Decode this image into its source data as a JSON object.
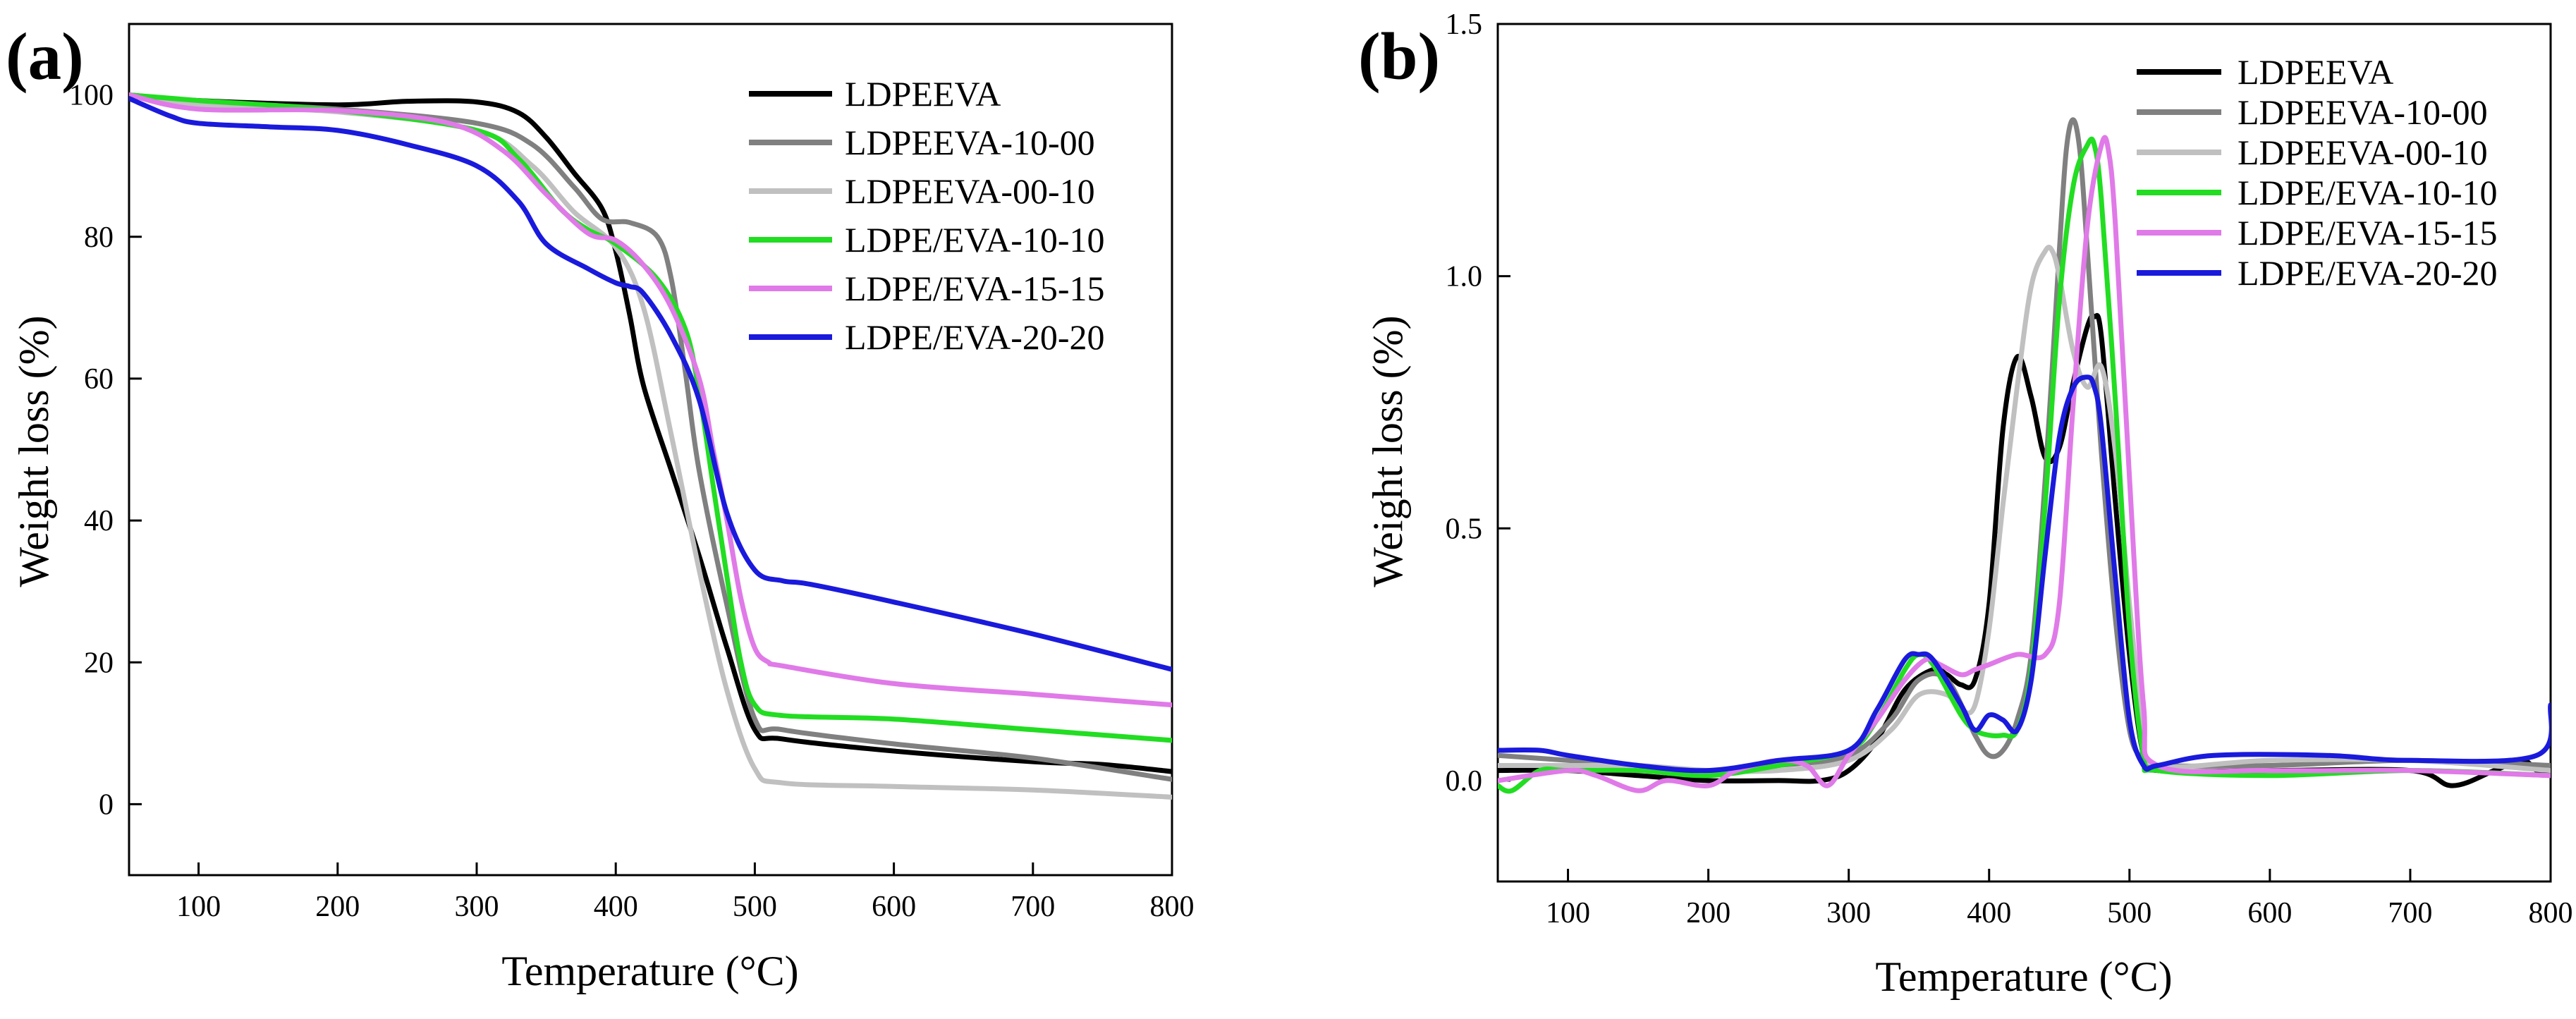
{
  "chart_data": [
    {
      "type": "line",
      "panel_label": "(a)",
      "xlabel": "Temperature (°C)",
      "ylabel": "Weight loss (%)",
      "xlim": [
        50,
        800
      ],
      "ylim": [
        -10,
        110
      ],
      "xticks": [
        100,
        200,
        300,
        400,
        500,
        600,
        700,
        800
      ],
      "yticks": [
        0,
        20,
        40,
        60,
        80,
        100
      ],
      "xtick_labels": [
        "100",
        "200",
        "300",
        "400",
        "500",
        "600",
        "700",
        "800"
      ],
      "ytick_labels": [
        "0",
        "20",
        "40",
        "60",
        "80",
        "100"
      ],
      "grid": false,
      "legend_position": "top-right",
      "series": [
        {
          "name": "LDPEEVA",
          "color": "#000000",
          "x": [
            50,
            100,
            200,
            250,
            300,
            330,
            350,
            370,
            390,
            400,
            410,
            420,
            440,
            460,
            480,
            500,
            520,
            600,
            700,
            750,
            800
          ],
          "y": [
            100,
            99.2,
            98.6,
            99.1,
            99,
            97.5,
            94,
            89,
            84,
            78,
            69,
            59,
            47,
            35,
            22,
            10.5,
            9.2,
            7.5,
            6,
            5.6,
            4.6
          ]
        },
        {
          "name": "LDPEEVA-10-00",
          "color": "#808080",
          "x": [
            50,
            100,
            200,
            300,
            340,
            370,
            390,
            410,
            430,
            440,
            450,
            460,
            480,
            500,
            520,
            600,
            700,
            800
          ],
          "y": [
            100,
            99,
            98,
            96,
            93,
            87,
            82.5,
            82,
            80,
            74,
            61,
            47,
            28,
            12,
            10.5,
            8.5,
            6.5,
            3.5
          ]
        },
        {
          "name": "LDPEEVA-00-10",
          "color": "#c0c0c0",
          "x": [
            50,
            100,
            200,
            300,
            340,
            370,
            400,
            420,
            440,
            460,
            480,
            500,
            520,
            600,
            700,
            800
          ],
          "y": [
            100,
            98.6,
            97.6,
            95,
            90,
            83.5,
            78.5,
            70,
            52,
            33,
            16,
            5,
            3,
            2.5,
            2,
            1
          ]
        },
        {
          "name": "LDPE/EVA-10-10",
          "color": "#22dd22",
          "x": [
            50,
            100,
            200,
            300,
            330,
            360,
            380,
            400,
            430,
            450,
            460,
            470,
            480,
            490,
            500,
            520,
            600,
            700,
            800
          ],
          "y": [
            100,
            99.2,
            97.8,
            95,
            91,
            84,
            81,
            79,
            74,
            67,
            58,
            45,
            32,
            20,
            14,
            12.5,
            12,
            10.5,
            9
          ]
        },
        {
          "name": "LDPE/EVA-15-15",
          "color": "#e07ae8",
          "x": [
            50,
            100,
            200,
            280,
            320,
            350,
            380,
            400,
            420,
            440,
            460,
            470,
            480,
            490,
            500,
            510,
            520,
            600,
            700,
            800
          ],
          "y": [
            100,
            98,
            97.8,
            96,
            92,
            86,
            80.5,
            79.5,
            76,
            70,
            60,
            50,
            40,
            29,
            22,
            20,
            19.5,
            17,
            15.5,
            14
          ]
        },
        {
          "name": "LDPE/EVA-20-20",
          "color": "#1a1adc",
          "x": [
            50,
            80,
            100,
            150,
            200,
            250,
            300,
            330,
            350,
            380,
            400,
            410,
            420,
            440,
            460,
            480,
            500,
            520,
            540,
            600,
            700,
            800
          ],
          "y": [
            99.5,
            97,
            96,
            95.5,
            95,
            93,
            90,
            85,
            79,
            75.5,
            73.5,
            73,
            72,
            66,
            57,
            41,
            33,
            31.5,
            31,
            28.5,
            24,
            19
          ]
        }
      ],
      "legend": [
        "LDPEEVA",
        "LDPEEVA-10-00",
        "LDPEEVA-00-10",
        "LDPE/EVA-10-10",
        "LDPE/EVA-15-15",
        "LDPE/EVA-20-20"
      ]
    },
    {
      "type": "line",
      "panel_label": "(b)",
      "xlabel": "Temperature (°C)",
      "ylabel": "Weight loss (%)",
      "xlim": [
        50,
        800
      ],
      "ylim": [
        -0.2,
        1.5
      ],
      "xticks": [
        100,
        200,
        300,
        400,
        500,
        600,
        700,
        800
      ],
      "yticks": [
        0.0,
        0.5,
        1.0,
        1.5
      ],
      "xtick_labels": [
        "100",
        "200",
        "300",
        "400",
        "500",
        "600",
        "700",
        "800"
      ],
      "ytick_labels": [
        "0.0",
        "0.5",
        "1.0",
        "1.5"
      ],
      "grid": false,
      "legend_position": "top-right",
      "series": [
        {
          "name": "LDPEEVA",
          "color": "#000000",
          "x": [
            50,
            100,
            150,
            200,
            250,
            280,
            300,
            320,
            340,
            360,
            370,
            380,
            390,
            400,
            410,
            420,
            430,
            440,
            450,
            460,
            470,
            475,
            480,
            490,
            500,
            510,
            520,
            600,
            700,
            730,
            760,
            780,
            790,
            800
          ],
          "y": [
            0.02,
            0.02,
            0.01,
            0.0,
            0.0,
            0.0,
            0.02,
            0.08,
            0.18,
            0.22,
            0.21,
            0.19,
            0.2,
            0.35,
            0.7,
            0.84,
            0.76,
            0.64,
            0.66,
            0.79,
            0.9,
            0.92,
            0.88,
            0.55,
            0.25,
            0.05,
            0.02,
            0.02,
            0.02,
            -0.01,
            0.02,
            0.04,
            0.02,
            0.01
          ]
        },
        {
          "name": "LDPEEVA-10-00",
          "color": "#808080",
          "x": [
            50,
            100,
            150,
            200,
            250,
            300,
            330,
            350,
            370,
            390,
            400,
            410,
            420,
            430,
            440,
            450,
            455,
            460,
            465,
            470,
            480,
            490,
            500,
            510,
            520,
            600,
            700,
            800
          ],
          "y": [
            0.05,
            0.04,
            0.03,
            0.02,
            0.03,
            0.05,
            0.12,
            0.2,
            0.2,
            0.09,
            0.05,
            0.06,
            0.12,
            0.25,
            0.6,
            1.05,
            1.25,
            1.31,
            1.24,
            1.05,
            0.65,
            0.32,
            0.1,
            0.04,
            0.03,
            0.03,
            0.04,
            0.03
          ]
        },
        {
          "name": "LDPEEVA-00-10",
          "color": "#c0c0c0",
          "x": [
            50,
            100,
            150,
            200,
            250,
            300,
            330,
            350,
            370,
            380,
            390,
            400,
            410,
            420,
            430,
            440,
            445,
            450,
            460,
            470,
            480,
            490,
            500,
            510,
            520,
            600,
            700,
            800
          ],
          "y": [
            0.03,
            0.03,
            0.03,
            0.02,
            0.02,
            0.04,
            0.1,
            0.17,
            0.17,
            0.14,
            0.15,
            0.3,
            0.55,
            0.78,
            0.98,
            1.05,
            1.05,
            1.0,
            0.85,
            0.78,
            0.82,
            0.65,
            0.35,
            0.1,
            0.03,
            0.04,
            0.04,
            0.02
          ]
        },
        {
          "name": "LDPE/EVA-10-10",
          "color": "#22dd22",
          "x": [
            50,
            60,
            80,
            100,
            150,
            200,
            250,
            300,
            320,
            340,
            350,
            360,
            380,
            390,
            400,
            410,
            420,
            430,
            440,
            450,
            460,
            470,
            475,
            480,
            490,
            500,
            510,
            520,
            600,
            700,
            800
          ],
          "y": [
            -0.01,
            -0.02,
            0.02,
            0.02,
            0.02,
            0.01,
            0.03,
            0.06,
            0.12,
            0.22,
            0.25,
            0.23,
            0.13,
            0.1,
            0.09,
            0.09,
            0.1,
            0.22,
            0.55,
            0.95,
            1.18,
            1.26,
            1.26,
            1.15,
            0.75,
            0.3,
            0.05,
            0.02,
            0.01,
            0.02,
            0.01
          ]
        },
        {
          "name": "LDPE/EVA-15-15",
          "color": "#e07ae8",
          "x": [
            50,
            100,
            120,
            150,
            170,
            200,
            220,
            250,
            270,
            285,
            300,
            320,
            340,
            355,
            365,
            380,
            390,
            400,
            420,
            440,
            450,
            460,
            470,
            480,
            485,
            490,
            500,
            510,
            520,
            600,
            700,
            800
          ],
          "y": [
            0.0,
            0.02,
            0.01,
            -0.02,
            0.0,
            -0.01,
            0.02,
            0.04,
            0.03,
            -0.01,
            0.05,
            0.12,
            0.2,
            0.24,
            0.23,
            0.21,
            0.22,
            0.23,
            0.25,
            0.25,
            0.35,
            0.75,
            1.1,
            1.26,
            1.25,
            1.1,
            0.6,
            0.15,
            0.03,
            0.02,
            0.02,
            0.01
          ]
        },
        {
          "name": "LDPE/EVA-20-20",
          "color": "#1a1adc",
          "x": [
            50,
            80,
            100,
            150,
            200,
            250,
            300,
            320,
            340,
            350,
            360,
            380,
            390,
            400,
            410,
            420,
            430,
            440,
            450,
            460,
            470,
            475,
            480,
            490,
            500,
            510,
            520,
            560,
            640,
            700,
            790,
            800
          ],
          "y": [
            0.06,
            0.06,
            0.05,
            0.03,
            0.02,
            0.04,
            0.06,
            0.14,
            0.24,
            0.25,
            0.24,
            0.15,
            0.1,
            0.13,
            0.12,
            0.1,
            0.2,
            0.45,
            0.68,
            0.78,
            0.8,
            0.78,
            0.7,
            0.4,
            0.12,
            0.03,
            0.03,
            0.05,
            0.05,
            0.04,
            0.05,
            0.15
          ]
        }
      ],
      "legend": [
        "LDPEEVA",
        "LDPEEVA-10-00",
        "LDPEEVA-00-10",
        "LDPE/EVA-10-10",
        "LDPE/EVA-15-15",
        "LDPE/EVA-20-20"
      ]
    }
  ]
}
